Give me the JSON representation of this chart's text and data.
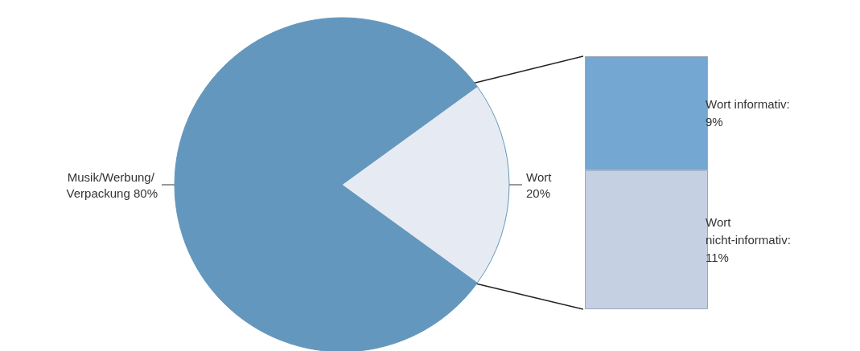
{
  "chart_data": [
    {
      "type": "pie",
      "categories": [
        "Musik/Werbung/ Verpackung",
        "Wort"
      ],
      "values": [
        80,
        20
      ],
      "value_labels": [
        "80%",
        "20%"
      ],
      "colors": [
        "#6497bd",
        "#e6ebf3"
      ]
    },
    {
      "type": "bar",
      "stacked": true,
      "categories": [
        null
      ],
      "series": [
        {
          "name": "Wort nicht-informativ:",
          "color": "#c5d1e3",
          "values": [
            11
          ],
          "value_labels": [
            "11%"
          ]
        },
        {
          "name": "Wort informativ:",
          "color": "#74a7d1",
          "values": [
            9
          ],
          "value_labels": [
            "9%"
          ]
        }
      ]
    }
  ]
}
